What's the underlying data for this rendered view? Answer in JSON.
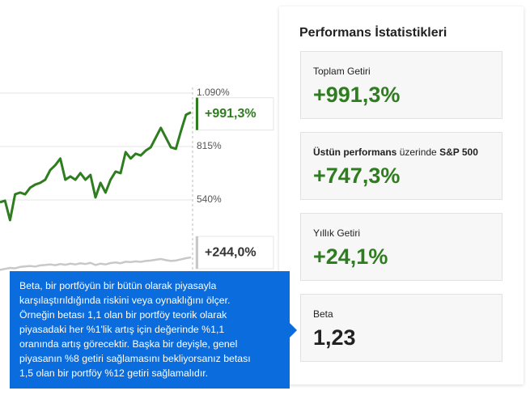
{
  "chart_data": {
    "type": "line",
    "categories": [
      null,
      null,
      null,
      null,
      null,
      null,
      null,
      null,
      null,
      null,
      null,
      null,
      null,
      null,
      null,
      null,
      null,
      null,
      null,
      null,
      null,
      null,
      null,
      null,
      null,
      null,
      null,
      null,
      null,
      null,
      null,
      null,
      null,
      null,
      null,
      null,
      null,
      null,
      null
    ],
    "series": [
      {
        "name": null,
        "color": "#2e7d1e",
        "values": [
          528,
          536,
          436,
          569,
          578,
          569,
          603,
          619,
          628,
          644,
          694,
          719,
          753,
          644,
          661,
          644,
          678,
          644,
          669,
          553,
          628,
          578,
          644,
          686,
          678,
          786,
          753,
          778,
          769,
          794,
          811,
          861,
          911,
          861,
          811,
          803,
          894,
          978,
          991.3
        ],
        "end_label": "+991,3%"
      },
      {
        "name": null,
        "color": "#c8c8c8",
        "values": [
          180,
          185,
          190,
          188,
          195,
          198,
          200,
          197,
          203,
          205,
          208,
          204,
          210,
          206,
          212,
          208,
          214,
          210,
          216,
          205,
          212,
          208,
          215,
          218,
          214,
          222,
          220,
          224,
          221,
          226,
          228,
          232,
          236,
          230,
          226,
          228,
          234,
          240,
          244
        ],
        "end_label": "+244,0%"
      }
    ],
    "ylim": [
      0,
      1090
    ],
    "yticks": [
      {
        "value": 1090,
        "label": "1.090%"
      },
      {
        "value": 815,
        "label": "815%"
      },
      {
        "value": 540,
        "label": "540%"
      }
    ],
    "grid": true
  },
  "stats": {
    "title": "Performans İstatistikleri",
    "cards": [
      {
        "label": "Toplam Getiri",
        "value": "+991,3%"
      },
      {
        "label_parts": [
          "Üstün performans",
          " üzerinde ",
          "S&P 500"
        ],
        "value": "+747,3%"
      },
      {
        "label": "Yıllık Getiri",
        "value": "+24,1%"
      },
      {
        "label": "Beta",
        "value": "1,23"
      }
    ]
  },
  "tooltip": {
    "lines": [
      "Beta, bir portföyün bir bütün olarak piyasayla",
      "karşılaştırıldığında riskini veya oynaklığını ölçer.",
      "Örneğin betası 1,1 olan bir portföy teorik olarak",
      "piyasadaki her %1'lik artış için değerinde %1,1",
      "oranında artış görecektir. Başka bir deyişle, genel",
      "piyasanın %8 getiri sağlamasını bekliyorsanız betası",
      "1,5 olan bir portföy %12 getiri sağlamalıdır."
    ]
  }
}
